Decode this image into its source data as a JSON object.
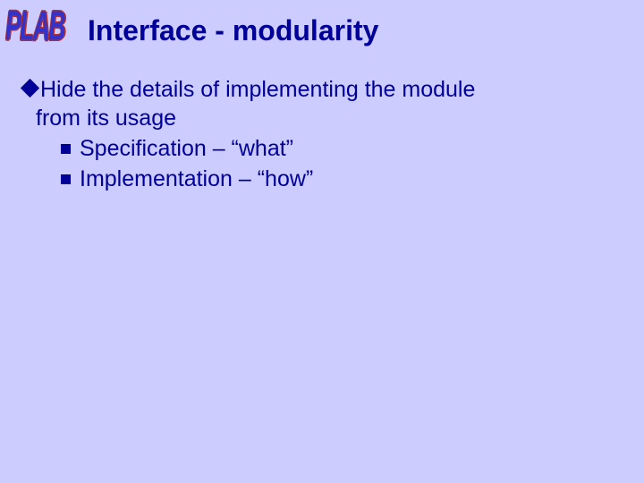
{
  "logo": "PLAB",
  "title": "Interface - modularity",
  "body": {
    "line1": "Hide the details of implementing the module",
    "line2": "from its usage",
    "sub1": "Specification – “what”",
    "sub2": "Implementation – “how”"
  },
  "colors": {
    "background": "#ccccff",
    "text": "#000099",
    "logo_fill": "#3333cc",
    "logo_outline": "#b03030"
  }
}
